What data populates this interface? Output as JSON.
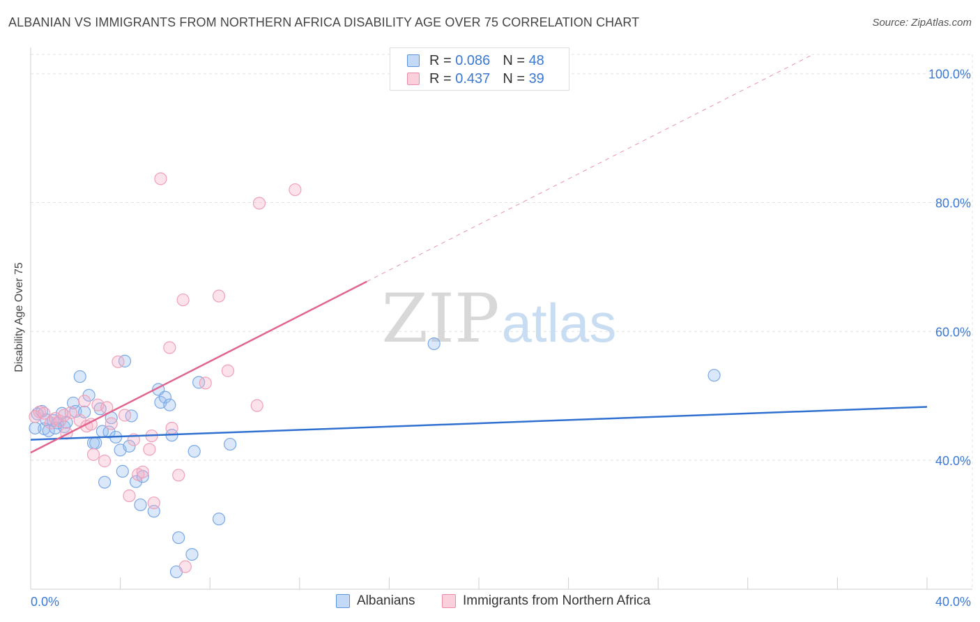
{
  "header": {
    "title": "ALBANIAN VS IMMIGRANTS FROM NORTHERN AFRICA DISABILITY AGE OVER 75 CORRELATION CHART",
    "source": "Source: ZipAtlas.com"
  },
  "watermark": {
    "zip": "ZIP",
    "atlas": "atlas"
  },
  "legend_top": {
    "rows": [
      {
        "r_label": "R =",
        "r_value": "0.086",
        "n_label": "N =",
        "n_value": "48",
        "color": "#5b93e0"
      },
      {
        "r_label": "R =",
        "r_value": "0.437",
        "n_label": "N =",
        "n_value": "39",
        "color": "#ee8aa8"
      }
    ]
  },
  "legend_bottom": [
    {
      "label": "Albanians",
      "color": "#5b93e0"
    },
    {
      "label": "Immigrants from Northern Africa",
      "color": "#ee8aa8"
    }
  ],
  "chart_data": {
    "type": "scatter",
    "title": "ALBANIAN VS IMMIGRANTS FROM NORTHERN AFRICA DISABILITY AGE OVER 75 CORRELATION CHART",
    "xlabel": "",
    "ylabel": "Disability Age Over 75",
    "xlim": [
      0,
      40
    ],
    "ylim": [
      20,
      103
    ],
    "x_tick_labels": {
      "left": "0.0%",
      "right": "40.0%"
    },
    "y_ticks": [
      {
        "value": 40,
        "label": "40.0%"
      },
      {
        "value": 60,
        "label": "60.0%"
      },
      {
        "value": 80,
        "label": "80.0%"
      },
      {
        "value": 100,
        "label": "100.0%"
      }
    ],
    "grid": true,
    "series": [
      {
        "name": "Albanians",
        "color": "#5b93e0",
        "trend": {
          "x0": 0,
          "y0": 43.2,
          "x1": 40,
          "y1": 48.3,
          "dashed_from": null
        },
        "points": [
          [
            0.3,
            47.2
          ],
          [
            0.5,
            47.6
          ],
          [
            0.6,
            44.9
          ],
          [
            0.7,
            46.3
          ],
          [
            0.8,
            44.6
          ],
          [
            1.0,
            46.2
          ],
          [
            1.1,
            45.0
          ],
          [
            1.2,
            45.8
          ],
          [
            1.4,
            47.3
          ],
          [
            1.5,
            45.2
          ],
          [
            1.6,
            45.9
          ],
          [
            1.9,
            48.9
          ],
          [
            2.0,
            47.6
          ],
          [
            2.2,
            53.0
          ],
          [
            2.4,
            47.5
          ],
          [
            2.6,
            50.1
          ],
          [
            2.8,
            42.7
          ],
          [
            2.9,
            42.7
          ],
          [
            3.1,
            48.0
          ],
          [
            3.2,
            44.5
          ],
          [
            3.3,
            36.6
          ],
          [
            3.5,
            44.4
          ],
          [
            3.6,
            46.6
          ],
          [
            3.8,
            43.6
          ],
          [
            4.0,
            41.6
          ],
          [
            4.1,
            38.3
          ],
          [
            4.2,
            55.4
          ],
          [
            4.4,
            42.2
          ],
          [
            4.5,
            46.9
          ],
          [
            4.7,
            36.7
          ],
          [
            4.9,
            33.1
          ],
          [
            5.0,
            37.5
          ],
          [
            5.5,
            32.1
          ],
          [
            5.7,
            51.0
          ],
          [
            5.8,
            49.0
          ],
          [
            6.0,
            49.8
          ],
          [
            6.2,
            48.6
          ],
          [
            6.3,
            43.9
          ],
          [
            6.5,
            22.7
          ],
          [
            6.6,
            28.0
          ],
          [
            7.2,
            25.4
          ],
          [
            7.3,
            41.4
          ],
          [
            7.5,
            52.1
          ],
          [
            8.4,
            30.9
          ],
          [
            8.9,
            42.5
          ],
          [
            18.0,
            58.1
          ],
          [
            30.5,
            53.2
          ],
          [
            0.2,
            45.0
          ]
        ]
      },
      {
        "name": "Immigrants from Northern Africa",
        "color": "#ee8aa8",
        "trend": {
          "x0": 0,
          "y0": 41.2,
          "x1": 40,
          "y1": 112.0,
          "dashed_from": 15.0
        },
        "points": [
          [
            0.2,
            46.8
          ],
          [
            0.4,
            47.5
          ],
          [
            0.6,
            47.3
          ],
          [
            0.9,
            45.8
          ],
          [
            1.1,
            46.5
          ],
          [
            1.3,
            46.1
          ],
          [
            1.5,
            47.0
          ],
          [
            1.6,
            44.2
          ],
          [
            1.8,
            47.4
          ],
          [
            2.2,
            46.2
          ],
          [
            2.4,
            49.2
          ],
          [
            2.5,
            45.3
          ],
          [
            2.7,
            45.6
          ],
          [
            2.8,
            40.9
          ],
          [
            3.0,
            48.6
          ],
          [
            3.3,
            39.9
          ],
          [
            3.4,
            48.2
          ],
          [
            3.6,
            45.7
          ],
          [
            3.9,
            55.3
          ],
          [
            4.2,
            47.0
          ],
          [
            4.4,
            34.5
          ],
          [
            4.6,
            43.2
          ],
          [
            4.8,
            37.8
          ],
          [
            5.0,
            38.2
          ],
          [
            5.3,
            41.7
          ],
          [
            5.4,
            43.8
          ],
          [
            5.5,
            33.4
          ],
          [
            5.8,
            83.7
          ],
          [
            6.2,
            57.5
          ],
          [
            6.3,
            45.0
          ],
          [
            6.6,
            37.7
          ],
          [
            6.8,
            64.9
          ],
          [
            6.9,
            23.5
          ],
          [
            7.8,
            52.0
          ],
          [
            8.4,
            65.5
          ],
          [
            8.8,
            53.9
          ],
          [
            10.1,
            48.5
          ],
          [
            10.2,
            79.9
          ],
          [
            11.8,
            82.0
          ]
        ]
      }
    ]
  }
}
